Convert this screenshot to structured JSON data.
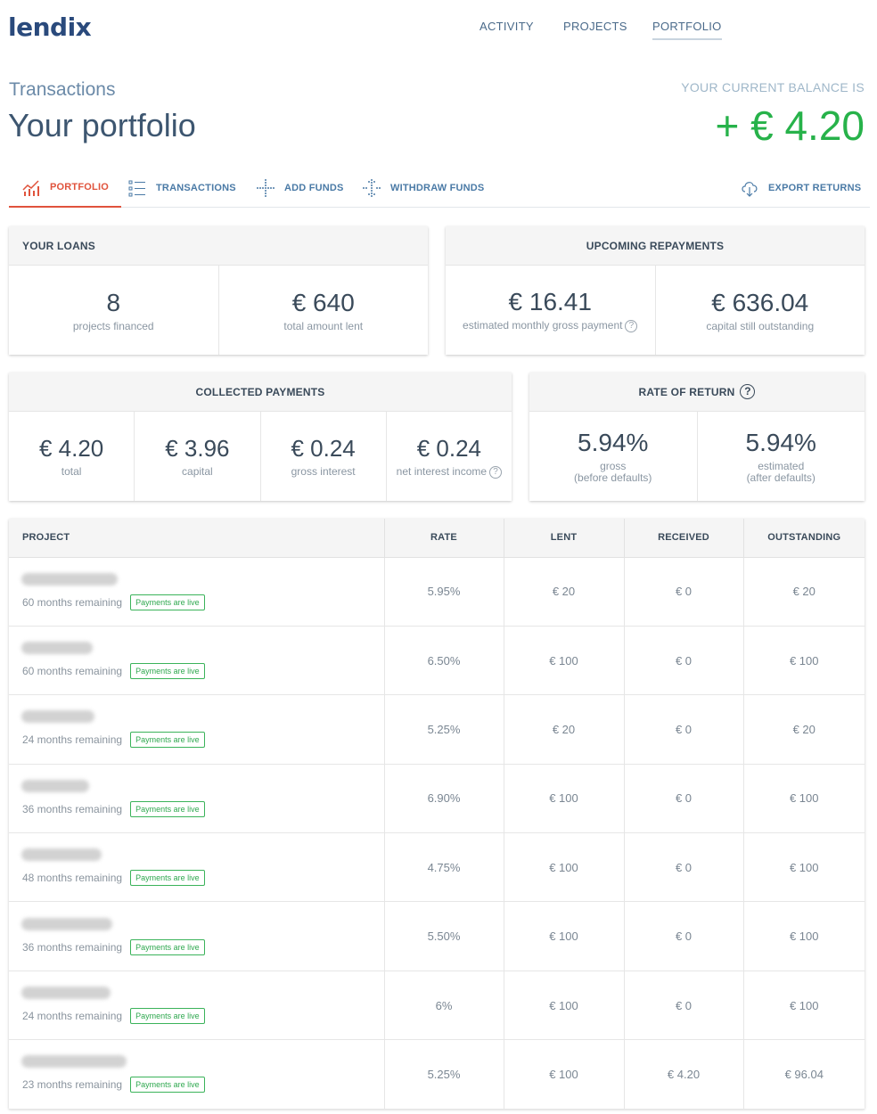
{
  "header": {
    "logo": "lendix",
    "nav": [
      "ACTIVITY",
      "PROJECTS",
      "PORTFOLIO"
    ],
    "subtitle": "Transactions",
    "title": "Your portfolio",
    "balance_label": "YOUR CURRENT BALANCE IS",
    "balance_value": "+ € 4.20"
  },
  "subtabs": {
    "portfolio": "PORTFOLIO",
    "transactions": "TRANSACTIONS",
    "add_funds": "ADD FUNDS",
    "withdraw_funds": "WITHDRAW FUNDS",
    "export_returns": "EXPORT RETURNS"
  },
  "loans": {
    "title": "YOUR LOANS",
    "projects_value": "8",
    "projects_label": "projects financed",
    "lent_value": "€ 640",
    "lent_label": "total amount lent"
  },
  "repayments": {
    "title": "UPCOMING REPAYMENTS",
    "monthly_value": "€ 16.41",
    "monthly_label": "estimated monthly gross payment",
    "outstanding_value": "€ 636.04",
    "outstanding_label": "capital still outstanding"
  },
  "collected": {
    "title": "COLLECTED PAYMENTS",
    "total_value": "€ 4.20",
    "total_label": "total",
    "capital_value": "€ 3.96",
    "capital_label": "capital",
    "gross_value": "€ 0.24",
    "gross_label": "gross interest",
    "net_value": "€ 0.24",
    "net_label": "net interest income"
  },
  "rate": {
    "title": "RATE OF RETURN",
    "gross_value": "5.94%",
    "gross_label": "gross",
    "gross_sub": "(before defaults)",
    "est_value": "5.94%",
    "est_label": "estimated",
    "est_sub": "(after defaults)"
  },
  "table": {
    "headers": [
      "PROJECT",
      "RATE",
      "LENT",
      "RECEIVED",
      "OUTSTANDING"
    ],
    "rows": [
      {
        "remaining": "60 months remaining",
        "status": "Payments are live",
        "rate": "5.95%",
        "lent": "€ 20",
        "received": "€ 0",
        "outstanding": "€ 20"
      },
      {
        "remaining": "60 months remaining",
        "status": "Payments are live",
        "rate": "6.50%",
        "lent": "€ 100",
        "received": "€ 0",
        "outstanding": "€ 100"
      },
      {
        "remaining": "24 months remaining",
        "status": "Payments are live",
        "rate": "5.25%",
        "lent": "€ 20",
        "received": "€ 0",
        "outstanding": "€ 20"
      },
      {
        "remaining": "36 months remaining",
        "status": "Payments are live",
        "rate": "6.90%",
        "lent": "€ 100",
        "received": "€ 0",
        "outstanding": "€ 100"
      },
      {
        "remaining": "48 months remaining",
        "status": "Payments are live",
        "rate": "4.75%",
        "lent": "€ 100",
        "received": "€ 0",
        "outstanding": "€ 100"
      },
      {
        "remaining": "36 months remaining",
        "status": "Payments are live",
        "rate": "5.50%",
        "lent": "€ 100",
        "received": "€ 0",
        "outstanding": "€ 100"
      },
      {
        "remaining": "24 months remaining",
        "status": "Payments are live",
        "rate": "6%",
        "lent": "€ 100",
        "received": "€ 0",
        "outstanding": "€ 100"
      },
      {
        "remaining": "23 months remaining",
        "status": "Payments are live",
        "rate": "5.25%",
        "lent": "€ 100",
        "received": "€ 4.20",
        "outstanding": "€ 96.04"
      }
    ]
  },
  "colors": {
    "brand": "#2a4a7c",
    "accent_active": "#e0533c",
    "balance_green": "#27b24a",
    "link_blue": "#4a7aa6"
  }
}
